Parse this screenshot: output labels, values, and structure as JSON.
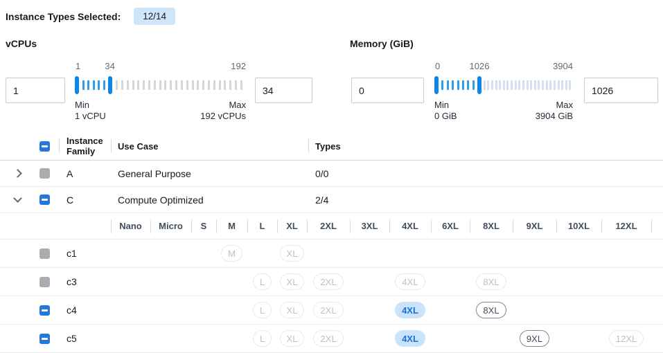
{
  "header": {
    "label": "Instance Types Selected:",
    "count": "12/14"
  },
  "filters": {
    "vcpu": {
      "title": "vCPUs",
      "min_input": "1",
      "max_input": "34",
      "slider": {
        "start_label": "1",
        "current_label": "34",
        "end_label": "192",
        "active_width_pct": 22,
        "current_label_pct": 20.5,
        "ticks_active": 5,
        "ticks_inactive": 24,
        "inactive_color": "#d3d5d8",
        "min_title": "Min",
        "min_value": "1 vCPU",
        "max_title": "Max",
        "max_value": "192 vCPUs"
      }
    },
    "memory": {
      "title": "Memory (GiB)",
      "min_input": "0",
      "max_input": "1026",
      "slider": {
        "start_label": "0",
        "current_label": "1026",
        "end_label": "3904",
        "active_width_pct": 34,
        "current_label_pct": 32.5,
        "ticks_active": 7,
        "ticks_inactive": 23,
        "inactive_color": "#d7def1",
        "min_title": "Min",
        "min_value": "0 GiB",
        "max_title": "Max",
        "max_value": "3904 GiB"
      }
    }
  },
  "table": {
    "headers": {
      "family": "Instance Family",
      "use_case": "Use Case",
      "types": "Types"
    },
    "size_columns": [
      "Nano",
      "Micro",
      "S",
      "M",
      "L",
      "XL",
      "2XL",
      "3XL",
      "4XL",
      "6XL",
      "8XL",
      "9XL",
      "10XL",
      "12XL"
    ],
    "family_rows": [
      {
        "expand": "collapsed",
        "checkbox": "disabled",
        "family": "A",
        "use_case": "General Purpose",
        "types": "0/0"
      },
      {
        "expand": "expanded",
        "checkbox": "indeterminate",
        "family": "C",
        "use_case": "Compute Optimized",
        "types": "2/4"
      }
    ],
    "instance_rows": [
      {
        "checkbox": "disabled",
        "name": "c1",
        "chips": [
          {
            "size": "M",
            "state": "disabled"
          },
          {
            "size": "XL",
            "state": "disabled"
          }
        ]
      },
      {
        "checkbox": "disabled",
        "name": "c3",
        "chips": [
          {
            "size": "L",
            "state": "disabled"
          },
          {
            "size": "XL",
            "state": "disabled"
          },
          {
            "size": "2XL",
            "state": "disabled"
          },
          {
            "size": "4XL",
            "state": "disabled"
          },
          {
            "size": "8XL",
            "state": "disabled"
          }
        ]
      },
      {
        "checkbox": "indeterminate",
        "name": "c4",
        "chips": [
          {
            "size": "L",
            "state": "disabled"
          },
          {
            "size": "XL",
            "state": "disabled"
          },
          {
            "size": "2XL",
            "state": "disabled"
          },
          {
            "size": "4XL",
            "state": "selected"
          },
          {
            "size": "8XL",
            "state": "enabled"
          }
        ]
      },
      {
        "checkbox": "indeterminate",
        "name": "c5",
        "chips": [
          {
            "size": "L",
            "state": "disabled"
          },
          {
            "size": "XL",
            "state": "disabled"
          },
          {
            "size": "2XL",
            "state": "disabled"
          },
          {
            "size": "4XL",
            "state": "selected"
          },
          {
            "size": "9XL",
            "state": "enabled"
          },
          {
            "size": "12XL",
            "state": "disabled"
          }
        ]
      }
    ]
  },
  "colors": {
    "accent_blue": "#2377de",
    "slider_handle_blue": "#0d86e9",
    "slider_tick_blue": "#2d9df2",
    "selected_chip_bg": "#cbe3fa",
    "selected_chip_text": "#1770d6",
    "badge_bg": "#cfe5fa"
  }
}
